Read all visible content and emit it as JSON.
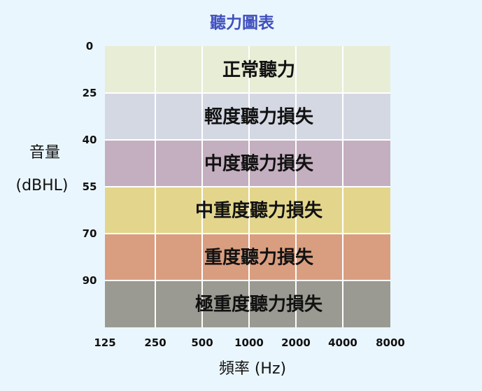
{
  "chart_data": {
    "type": "heatmap",
    "title": "聽力圖表",
    "xlabel": "頻率 (Hz)",
    "ylabel_line1": "音量",
    "ylabel_line2": "(dBHL)",
    "x_ticks": [
      "125",
      "250",
      "500",
      "1000",
      "2000",
      "4000",
      "8000"
    ],
    "y_ticks": [
      "0",
      "25",
      "40",
      "55",
      "70",
      "90"
    ],
    "bands": [
      {
        "label": "正常聽力",
        "from_db": 0,
        "to_db": 25,
        "color": "#e8edd6"
      },
      {
        "label": "輕度聽力損失",
        "from_db": 25,
        "to_db": 40,
        "color": "#d4d8e3"
      },
      {
        "label": "中度聽力損失",
        "from_db": 40,
        "to_db": 55,
        "color": "#c3afbf"
      },
      {
        "label": "中重度聽力損失",
        "from_db": 55,
        "to_db": 70,
        "color": "#e3d68c"
      },
      {
        "label": "重度聽力損失",
        "from_db": 70,
        "to_db": 90,
        "color": "#d99e80"
      },
      {
        "label": "極重度聽力損失",
        "from_db": 90,
        "to_db": 120,
        "color": "#9a9a92"
      }
    ],
    "grid": true,
    "colors": {
      "title": "#3f4fbf",
      "grid": "#ffffff",
      "background": "#eaf6fd"
    }
  }
}
